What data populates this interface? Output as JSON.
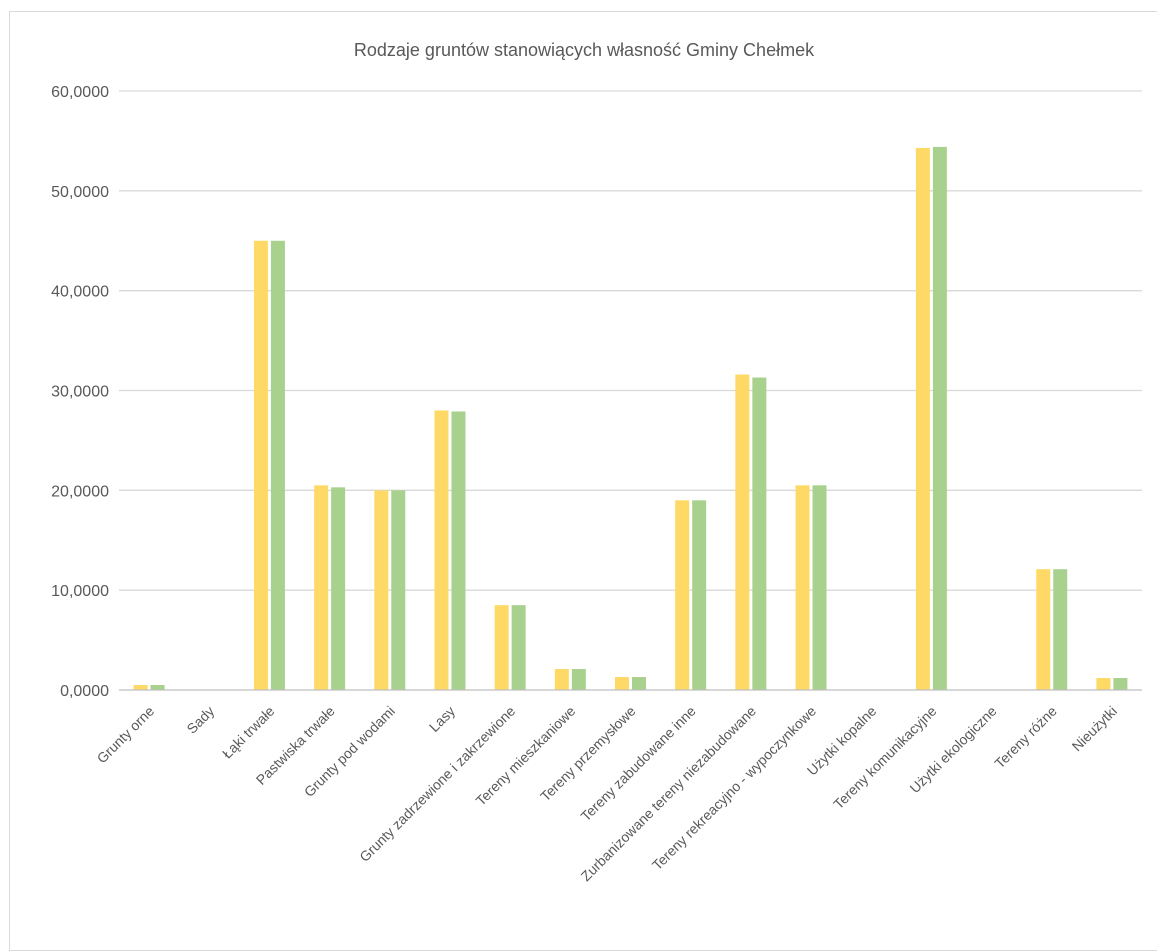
{
  "chart_data": {
    "type": "bar",
    "title": "Rodzaje gruntów stanowiących własność Gminy Chełmek",
    "xlabel": "",
    "ylabel": "",
    "ylim": [
      0,
      60
    ],
    "yticks": [
      "0,0000",
      "10,0000",
      "20,0000",
      "30,0000",
      "40,0000",
      "50,0000",
      "60,0000"
    ],
    "ytick_values": [
      0,
      10,
      20,
      30,
      40,
      50,
      60
    ],
    "grid": true,
    "legend": "none",
    "categories": [
      "Grunty orne",
      "Sady",
      "Łąki trwałe",
      "Pastwiska trwałe",
      "Grunty pod wodami",
      "Lasy",
      "Grunty zadrzewione i zakrzewione",
      "Tereny mieszkaniowe",
      "Tereny przemysłowe",
      "Tereny zabudowane inne",
      "Zurbanizowane tereny niezabudowane",
      "Tereny rekreacyjno - wypoczynkowe",
      "Użytki kopalne",
      "Tereny komunikacyjne",
      "Użytki ekologiczne",
      "Tereny różne",
      "Nieużytki"
    ],
    "series": [
      {
        "color": "#ffd966",
        "values": [
          0.5,
          0,
          45.0,
          20.5,
          20.0,
          28.0,
          8.5,
          2.1,
          1.3,
          19.0,
          31.6,
          20.5,
          0,
          54.3,
          0,
          12.1,
          1.2
        ]
      },
      {
        "color": "#a9d18e",
        "values": [
          0.5,
          0,
          45.0,
          20.3,
          20.0,
          27.9,
          8.5,
          2.1,
          1.3,
          19.0,
          31.3,
          20.5,
          0,
          54.4,
          0,
          12.1,
          1.2
        ]
      }
    ]
  },
  "colors": {
    "gridline": "#d9d9d9",
    "axis": "#bfbfbf",
    "text": "#595959"
  }
}
